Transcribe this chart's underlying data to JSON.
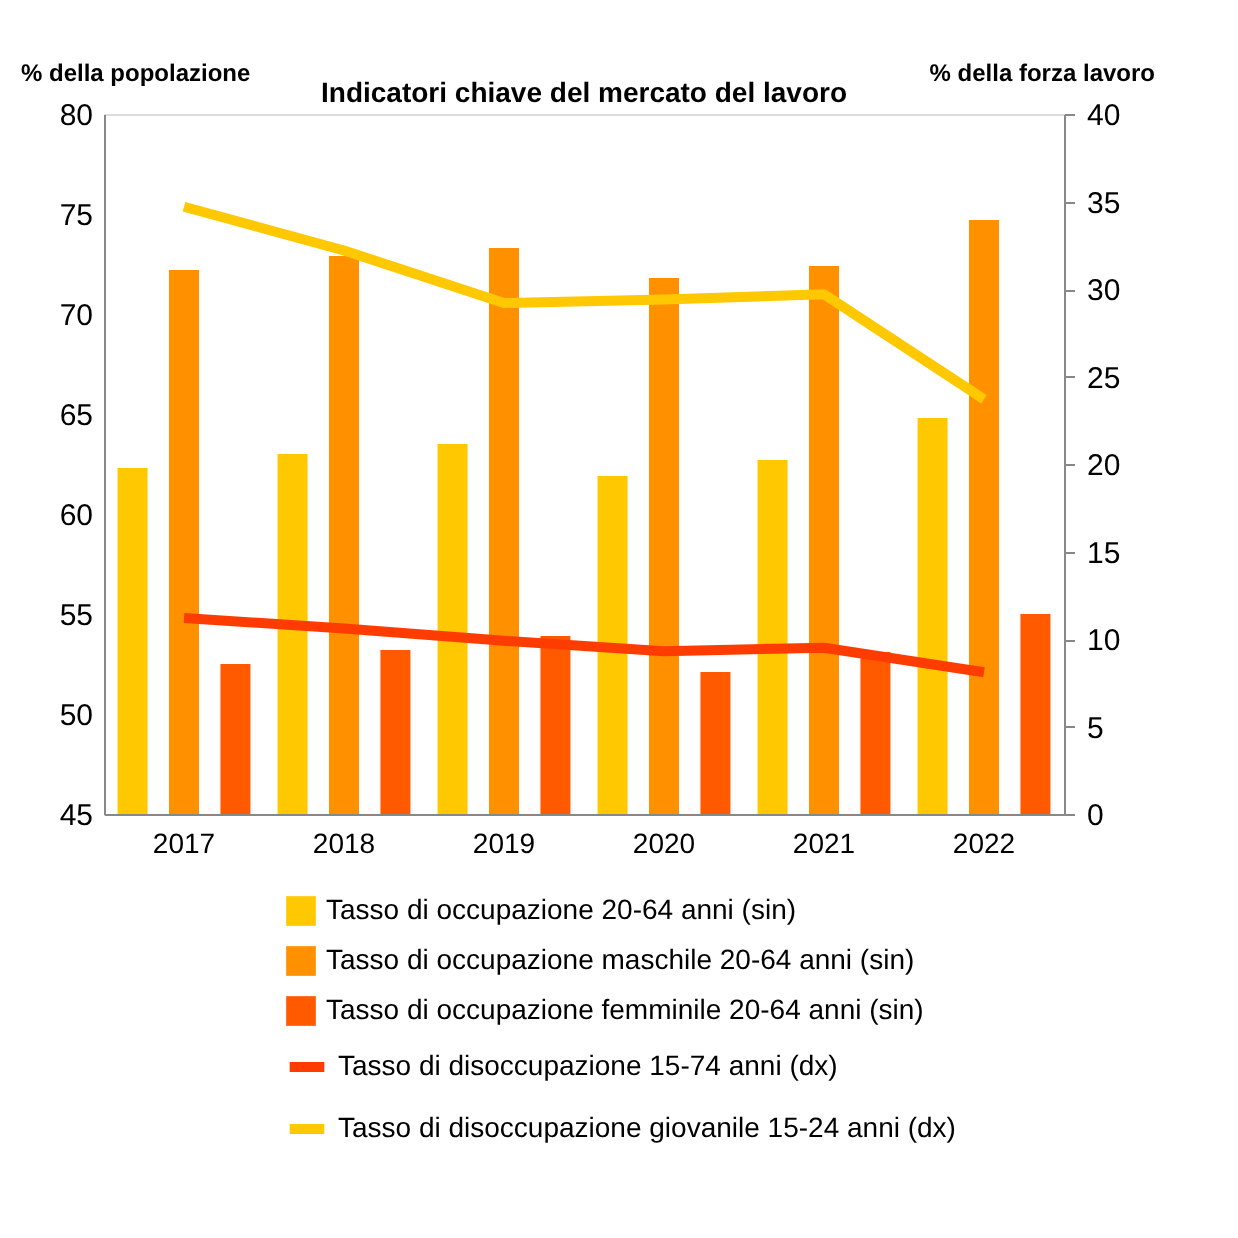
{
  "chart_data": {
    "type": "bar",
    "title": "Indicatori chiave del mercato del lavoro",
    "ylabel": "% della popolazione",
    "y2label": "% della forza lavoro",
    "categories": [
      "2017",
      "2018",
      "2019",
      "2020",
      "2021",
      "2022"
    ],
    "ylim": [
      45,
      80
    ],
    "yticks": [
      45,
      50,
      55,
      60,
      65,
      70,
      75,
      80
    ],
    "y2lim": [
      0,
      40
    ],
    "y2ticks": [
      0,
      5,
      10,
      15,
      20,
      25,
      30,
      35,
      40
    ],
    "series": [
      {
        "name": "Tasso di occupazione 20-64 anni (sin)",
        "color": "#ffc800",
        "values": [
          62.3,
          63.0,
          63.5,
          61.9,
          62.7,
          64.8
        ]
      },
      {
        "name": "Tasso di occupazione maschile 20-64 anni (sin)",
        "color": "#ff9000",
        "values": [
          72.2,
          72.9,
          73.3,
          71.8,
          72.4,
          74.7
        ]
      },
      {
        "name": "Tasso di occupazione femminile 20-64 anni (sin)",
        "color": "#ff5a00",
        "values": [
          52.5,
          53.2,
          53.9,
          52.1,
          53.1,
          55.0
        ]
      },
      {
        "name": "Tasso di disoccupazione 15-74 anni (dx)",
        "type": "line",
        "axis": "y2",
        "color": "#ff3c00",
        "values": [
          11.2,
          10.6,
          9.9,
          9.3,
          9.5,
          8.1
        ]
      },
      {
        "name": "Tasso di disoccupazione giovanile 15-24 anni (dx)",
        "type": "line",
        "axis": "y2",
        "color": "#ffc800",
        "values": [
          34.7,
          32.2,
          29.2,
          29.4,
          29.7,
          23.7
        ]
      }
    ],
    "legend": "bottom",
    "grid": false
  }
}
